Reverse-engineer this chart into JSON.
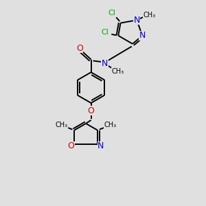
{
  "bg_color": "#e0e0e0",
  "bond_color": "#000000",
  "bond_width": 1.4,
  "cl_color": "#00aa00",
  "n_color": "#0000cc",
  "o_color": "#cc0000",
  "font_size": 8,
  "fig_w": 3.0,
  "fig_h": 3.0,
  "dpi": 100,
  "xlim": [
    0,
    10
  ],
  "ylim": [
    0,
    12
  ]
}
